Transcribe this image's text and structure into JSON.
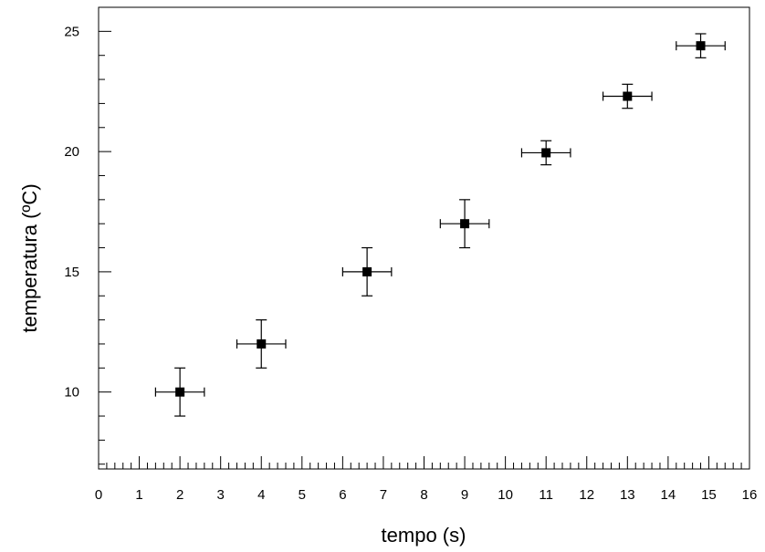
{
  "chart_data": {
    "type": "scatter",
    "title": "",
    "xlabel": "tempo (s)",
    "ylabel": "temperatura (ºC)",
    "xlim": [
      0,
      16
    ],
    "ylim": [
      6.8,
      26
    ],
    "grid": false,
    "x_ticks": [
      0,
      1,
      2,
      3,
      4,
      5,
      6,
      7,
      8,
      9,
      10,
      11,
      12,
      13,
      14,
      15,
      16
    ],
    "x_tick_labels": [
      "0",
      "1",
      "2",
      "3",
      "4",
      "5",
      "6",
      "7",
      "8",
      "9",
      "10",
      "11",
      "12",
      "13",
      "14",
      "15",
      "16"
    ],
    "y_ticks": [
      10,
      15,
      20,
      25
    ],
    "y_tick_labels": [
      "10",
      "15",
      "20",
      "25"
    ],
    "x_minor_step": 0.2,
    "y_minor_step": 1,
    "series": [
      {
        "marker": "square",
        "color": "#000000",
        "x": [
          2.0,
          4.0,
          6.6,
          9.0,
          11.0,
          13.0,
          14.8
        ],
        "y": [
          10.0,
          12.0,
          15.0,
          17.0,
          19.95,
          22.3,
          24.4
        ],
        "x_err": [
          0.6,
          0.6,
          0.6,
          0.6,
          0.6,
          0.6,
          0.6
        ],
        "y_err": [
          1.0,
          1.0,
          1.0,
          1.0,
          0.5,
          0.5,
          0.5
        ]
      }
    ]
  }
}
